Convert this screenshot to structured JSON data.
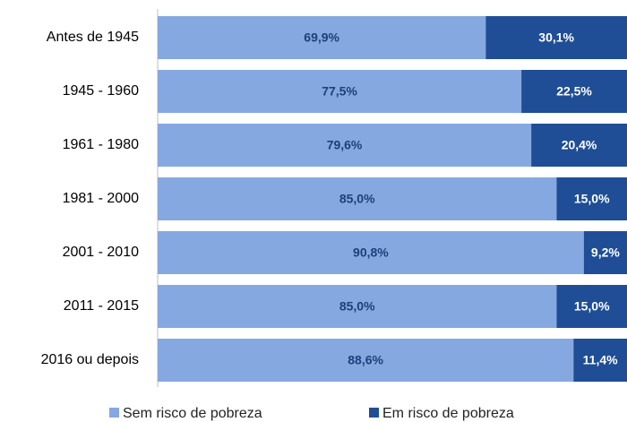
{
  "chart_data": {
    "type": "stacked_barh",
    "categories": [
      "Antes de 1945",
      "1945 - 1960",
      "1961 - 1980",
      "1981 - 2000",
      "2001 - 2010",
      "2011 - 2015",
      "2016 ou depois"
    ],
    "series": [
      {
        "name": "Sem risco de pobreza",
        "color": "#86a8e0",
        "label_color": "#1f3f7a",
        "values": [
          69.9,
          77.5,
          79.6,
          85.0,
          90.8,
          85.0,
          88.6
        ],
        "value_labels": [
          "69,9%",
          "77,5%",
          "79,6%",
          "85,0%",
          "90,8%",
          "85,0%",
          "88,6%"
        ]
      },
      {
        "name": "Em risco de pobreza",
        "color": "#1f4e96",
        "label_color": "#ffffff",
        "values": [
          30.1,
          22.5,
          20.4,
          15.0,
          9.2,
          15.0,
          11.4
        ],
        "value_labels": [
          "30,1%",
          "22,5%",
          "20,4%",
          "15,0%",
          "9,2%",
          "15,0%",
          "11,4%"
        ]
      }
    ],
    "xlim": [
      0,
      100
    ]
  }
}
